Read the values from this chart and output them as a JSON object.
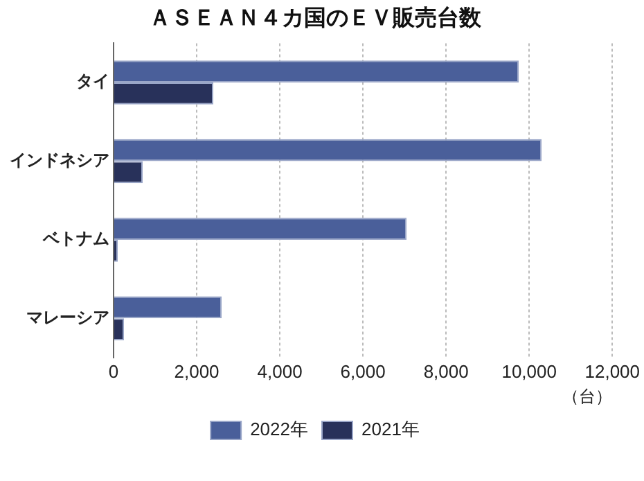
{
  "chart_data": {
    "type": "bar",
    "orientation": "horizontal",
    "title": "ＡＳＥＡＮ４カ国のＥＶ販売台数",
    "xlabel": "（台）",
    "categories": [
      "タイ",
      "インドネシア",
      "ベトナム",
      "マレーシア"
    ],
    "series": [
      {
        "name": "2022年",
        "color": "#4a5f9a",
        "values": [
          9750,
          10300,
          7050,
          2600
        ]
      },
      {
        "name": "2021年",
        "color": "#28315a",
        "values": [
          2400,
          700,
          100,
          250
        ]
      }
    ],
    "xlim": [
      0,
      12000
    ],
    "xticks": [
      0,
      {
        "value": 2000,
        "label": "2,000"
      },
      {
        "value": 4000,
        "label": "4,000"
      },
      {
        "value": 6000,
        "label": "6,000"
      },
      {
        "value": 8000,
        "label": "8,000"
      },
      {
        "value": 10000,
        "label": "10,000"
      },
      {
        "value": 12000,
        "label": "12,000"
      }
    ],
    "grid": "x",
    "legend": "bottom"
  }
}
